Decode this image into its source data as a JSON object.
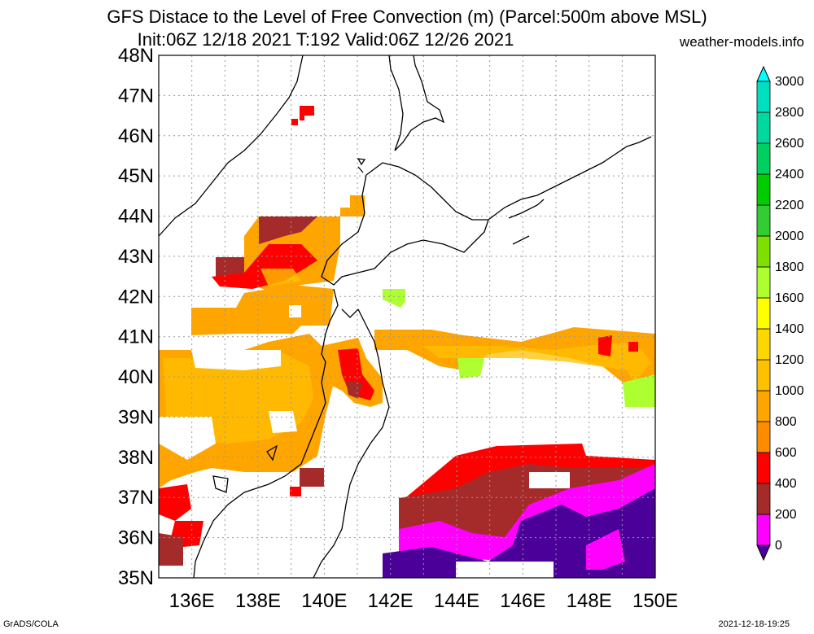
{
  "header": {
    "title_line1": "GFS Distace to the Level of Free Convection (m) (Parcel:500m above MSL)",
    "title_line2": "Init:06Z 12/18 2021 T:192 Valid:06Z 12/26 2021",
    "site": "weather-models.info"
  },
  "footer": {
    "left": "GrADS/COLA",
    "right": "2021-12-18-19:25"
  },
  "map": {
    "lat_labels": [
      "48N",
      "47N",
      "46N",
      "45N",
      "44N",
      "43N",
      "42N",
      "41N",
      "40N",
      "39N",
      "38N",
      "37N",
      "36N",
      "35N"
    ],
    "lon_labels": [
      "136E",
      "138E",
      "140E",
      "142E",
      "144E",
      "146E",
      "148E",
      "150E"
    ],
    "grid": "dotted",
    "coastline_color": "#000000"
  },
  "colorbar": {
    "levels": [
      "0",
      "200",
      "400",
      "600",
      "800",
      "1000",
      "1200",
      "1400",
      "1600",
      "1800",
      "2000",
      "2200",
      "2400",
      "2600",
      "2800",
      "3000"
    ],
    "colors": [
      "#4a0099",
      "#ff00ff",
      "#a52a2a",
      "#ff0000",
      "#ff8c00",
      "#ffa500",
      "#ffc000",
      "#ffd700",
      "#ffff00",
      "#adff2f",
      "#7fdf00",
      "#32cd32",
      "#00cc00",
      "#00d060",
      "#00d8a0",
      "#00e0c0",
      "#00ffff"
    ]
  }
}
